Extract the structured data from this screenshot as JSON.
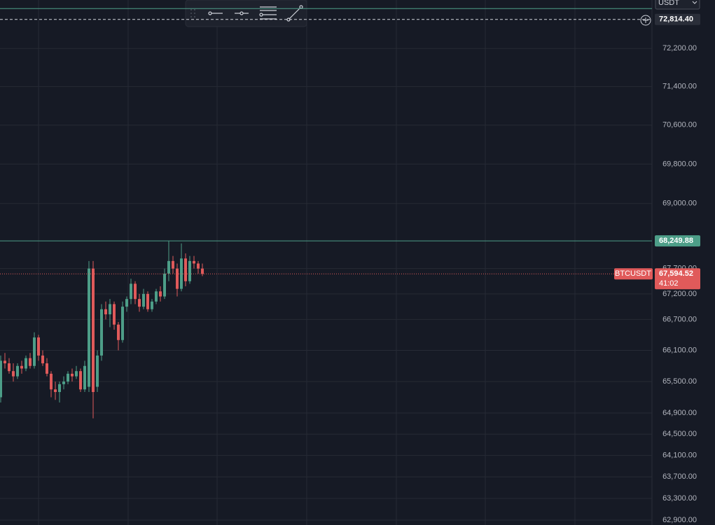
{
  "chart_data": {
    "type": "candlestick",
    "currency": "USDT",
    "log_scale": true,
    "grid": true,
    "up_color": "#4d9e88",
    "down_color": "#e05a5a",
    "ylim": [
      62810,
      73230
    ],
    "yticks": [
      {
        "value": 72200,
        "label": "72,200.00"
      },
      {
        "value": 71400,
        "label": "71,400.00"
      },
      {
        "value": 70600,
        "label": "70,600.00"
      },
      {
        "value": 69800,
        "label": "69,800.00"
      },
      {
        "value": 69000,
        "label": "69,000.00"
      },
      {
        "value": 67700,
        "label": "67,700.00"
      },
      {
        "value": 67200,
        "label": "67,200.00"
      },
      {
        "value": 66700,
        "label": "66,700.00"
      },
      {
        "value": 66100,
        "label": "66,100.00"
      },
      {
        "value": 65500,
        "label": "65,500.00"
      },
      {
        "value": 64900,
        "label": "64,900.00"
      },
      {
        "value": 64500,
        "label": "64,500.00"
      },
      {
        "value": 64100,
        "label": "64,100.00"
      },
      {
        "value": 63700,
        "label": "63,700.00"
      },
      {
        "value": 63300,
        "label": "63,300.00"
      },
      {
        "value": 62900,
        "label": "62,900.00"
      }
    ],
    "categories": [
      null,
      null,
      null,
      null,
      null,
      null,
      null,
      null,
      null,
      null,
      null,
      null,
      null,
      null,
      null,
      null,
      null,
      null,
      null,
      null,
      null,
      null,
      null,
      null,
      null,
      null,
      null,
      null,
      null,
      null,
      null,
      null,
      null,
      null,
      null,
      null,
      null,
      null,
      null,
      null,
      null,
      null,
      null,
      null,
      null,
      null,
      null,
      null,
      null
    ],
    "open": [
      65200,
      65900,
      65850,
      65700,
      65600,
      65800,
      65750,
      65950,
      65800,
      66350,
      66000,
      65850,
      65650,
      65350,
      65300,
      65450,
      65500,
      65650,
      65600,
      65700,
      65350,
      65400,
      67700,
      65400,
      66000,
      66900,
      66800,
      67000,
      66600,
      66300,
      66950,
      67100,
      67400,
      67100,
      66950,
      67200,
      66900,
      67050,
      67250,
      67150,
      67600,
      67850,
      67700,
      67300,
      67900,
      67450,
      67850,
      67800,
      67700
    ],
    "high": [
      66000,
      66050,
      65950,
      65850,
      65850,
      65900,
      66000,
      66050,
      66450,
      66400,
      66100,
      65950,
      65700,
      65500,
      65500,
      65600,
      65700,
      65750,
      65800,
      65750,
      65900,
      67850,
      67850,
      66100,
      67000,
      67050,
      67100,
      67050,
      66650,
      67050,
      67150,
      67500,
      67450,
      67200,
      67300,
      67250,
      67100,
      67300,
      67350,
      67700,
      68250,
      67950,
      67800,
      68200,
      68000,
      67950,
      67950,
      67850,
      67800
    ],
    "low": [
      65100,
      65750,
      65650,
      65500,
      65550,
      65650,
      65700,
      65750,
      65750,
      65900,
      65800,
      65600,
      65200,
      65150,
      65100,
      65350,
      65450,
      65500,
      65550,
      65300,
      65300,
      65300,
      64800,
      65300,
      65900,
      66700,
      66550,
      66500,
      66100,
      66250,
      66850,
      67000,
      67000,
      66850,
      66900,
      66850,
      66850,
      67000,
      67050,
      67100,
      67450,
      67600,
      67150,
      67250,
      67350,
      67400,
      67700,
      67600,
      67550
    ],
    "close": [
      65900,
      65850,
      65700,
      65600,
      65800,
      65750,
      65950,
      65800,
      66350,
      66000,
      65850,
      65650,
      65350,
      65300,
      65450,
      65500,
      65650,
      65600,
      65700,
      65350,
      65800,
      67700,
      65300,
      66000,
      66900,
      66800,
      67000,
      66600,
      66300,
      66950,
      67100,
      67400,
      67100,
      66950,
      67200,
      66900,
      67050,
      67250,
      67150,
      67600,
      67850,
      67700,
      67300,
      67900,
      67450,
      67850,
      67800,
      67700,
      67594.52
    ],
    "price_lines": [
      {
        "value": 73047,
        "color": "#4d9e88",
        "style": "solid"
      },
      {
        "value": 72814.4,
        "label": "72,814.40",
        "color": "#d1d4dc",
        "style": "dashed"
      },
      {
        "value": 68249.88,
        "label": "68,249.88",
        "color": "#4d9e88",
        "style": "solid"
      },
      {
        "value": 67594.52,
        "label": "67,594.52",
        "name": "BTCUSDT",
        "countdown": "41:02",
        "color": "#e05a5a",
        "style": "dotted"
      }
    ]
  }
}
